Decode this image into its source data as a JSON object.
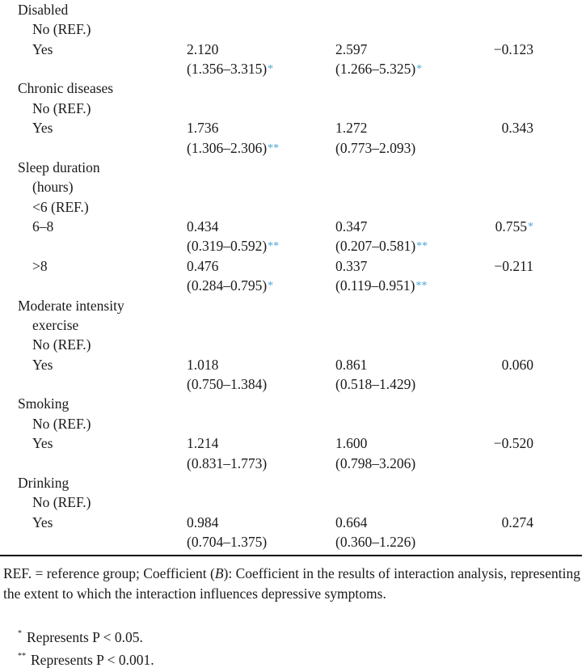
{
  "table": {
    "groups": [
      {
        "label": [
          "Disabled"
        ],
        "rows": [
          {
            "label": "No (REF.)"
          },
          {
            "label": "Yes",
            "or1": "2.120",
            "ci1": "(1.356–3.315)",
            "sig1": "*",
            "or2": "2.597",
            "ci2": "(1.266–5.325)",
            "sig2": "*",
            "b": "−0.123",
            "sigb": ""
          }
        ]
      },
      {
        "label": [
          "Chronic diseases"
        ],
        "rows": [
          {
            "label": "No (REF.)"
          },
          {
            "label": "Yes",
            "or1": "1.736",
            "ci1": "(1.306–2.306)",
            "sig1": "**",
            "or2": "1.272",
            "ci2": "(0.773–2.093)",
            "sig2": "",
            "b": "0.343",
            "sigb": ""
          }
        ]
      },
      {
        "label": [
          "Sleep duration",
          "(hours)"
        ],
        "rows": [
          {
            "label": "<6 (REF.)"
          },
          {
            "label": "6–8",
            "or1": "0.434",
            "ci1": "(0.319–0.592)",
            "sig1": "**",
            "or2": "0.347",
            "ci2": "(0.207–0.581)",
            "sig2": "**",
            "b": "0.755",
            "sigb": "*"
          },
          {
            "label": ">8",
            "or1": "0.476",
            "ci1": "(0.284–0.795)",
            "sig1": "*",
            "or2": "0.337",
            "ci2": "(0.119–0.951)",
            "sig2": "**",
            "b": "−0.211",
            "sigb": ""
          }
        ]
      },
      {
        "label": [
          "Moderate intensity",
          "exercise"
        ],
        "rows": [
          {
            "label": "No (REF.)"
          },
          {
            "label": "Yes",
            "or1": "1.018",
            "ci1": "(0.750–1.384)",
            "sig1": "",
            "or2": "0.861",
            "ci2": "(0.518–1.429)",
            "sig2": "",
            "b": "0.060",
            "sigb": ""
          }
        ]
      },
      {
        "label": [
          "Smoking"
        ],
        "rows": [
          {
            "label": "No (REF.)"
          },
          {
            "label": "Yes",
            "or1": "1.214",
            "ci1": "(0.831–1.773)",
            "sig1": "",
            "or2": "1.600",
            "ci2": "(0.798–3.206)",
            "sig2": "",
            "b": "−0.520",
            "sigb": ""
          }
        ]
      },
      {
        "label": [
          "Drinking"
        ],
        "rows": [
          {
            "label": "No (REF.)"
          },
          {
            "label": "Yes",
            "or1": "0.984",
            "ci1": "(0.704–1.375)",
            "sig1": "",
            "or2": "0.664",
            "ci2": "(0.360–1.226)",
            "sig2": "",
            "b": "0.274",
            "sigb": ""
          }
        ]
      }
    ],
    "significance_color": "#4aa3d8"
  },
  "footnote": {
    "pre": "REF. = reference group; Coefficient (",
    "italic": "B",
    "post": "): Coefficient in the results of interaction analysis, representing the extent to which the interaction influences depressive symptoms.",
    "notes": [
      {
        "mark": "*",
        "text": "Represents P < 0.05."
      },
      {
        "mark": "**",
        "text": "Represents P < 0.001."
      }
    ]
  }
}
